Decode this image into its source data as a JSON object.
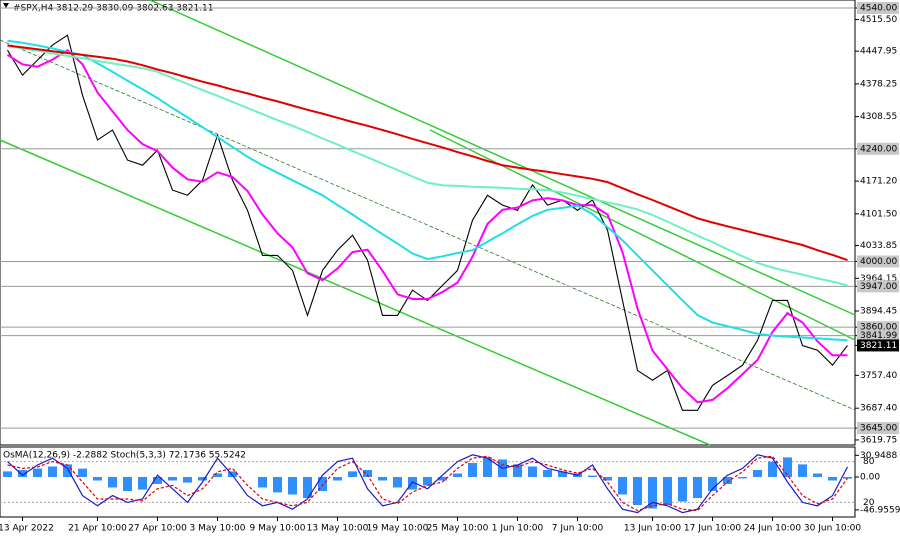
{
  "chart_data": [
    {
      "type": "line",
      "title": "#SPX,H4  3812.29 3830.09 3802.63 3821.11",
      "categories": [
        null,
        "13 Apr 2022",
        null,
        null,
        null,
        null,
        "21 Apr 10:00",
        null,
        null,
        null,
        "27 Apr 10:00",
        null,
        null,
        null,
        "3 May 10:00",
        null,
        null,
        null,
        "9 May 10:00",
        null,
        null,
        null,
        "13 May 10:00",
        null,
        null,
        null,
        "19 May 10:00",
        null,
        null,
        null,
        "25 May 10:00",
        null,
        null,
        null,
        "1 Jun 10:00",
        null,
        null,
        null,
        "7 Jun 10:00",
        null,
        null,
        null,
        null,
        "13 Jun 10:00",
        null,
        null,
        null,
        "17 Jun 10:00",
        null,
        null,
        null,
        "24 Jun 10:00",
        null,
        null,
        null,
        "30 Jun 10:00",
        null
      ],
      "series": [
        {
          "color": "#000000",
          "values": [
            4450,
            4397,
            4429,
            4461,
            4482,
            4354,
            4259,
            4280,
            4216,
            4205,
            4237,
            4152,
            4141,
            4173,
            4269,
            4173,
            4109,
            4013,
            4013,
            3981,
            3885,
            3981,
            4024,
            4056,
            4003,
            3885,
            3885,
            3939,
            3917,
            3949,
            3981,
            4088,
            4141,
            4120,
            4109,
            4163,
            4120,
            4131,
            4109,
            4131,
            4067,
            3917,
            3768,
            3747,
            3768,
            3683,
            3683,
            3736,
            3757,
            3779,
            3832,
            3917,
            3917,
            3821,
            3811,
            3779,
            3821.11
          ]
        },
        {
          "color": "#ff00ff",
          "values": [
            4440,
            4420,
            4415,
            4430,
            4450,
            4420,
            4360,
            4320,
            4280,
            4250,
            4235,
            4200,
            4175,
            4170,
            4190,
            4180,
            4150,
            4100,
            4060,
            4030,
            3975,
            3960,
            3985,
            4020,
            4025,
            3980,
            3930,
            3920,
            3920,
            3935,
            3955,
            4010,
            4080,
            4110,
            4115,
            4130,
            4135,
            4130,
            4120,
            4120,
            4100,
            4020,
            3900,
            3810,
            3770,
            3730,
            3700,
            3705,
            3730,
            3760,
            3790,
            3850,
            3890,
            3870,
            3830,
            3800,
            3800
          ]
        },
        {
          "color": "#22dde8",
          "values": [
            4470,
            4466,
            4460,
            4454,
            4446,
            4440,
            4422,
            4404,
            4385,
            4367,
            4348,
            4327,
            4307,
            4286,
            4265,
            4244,
            4223,
            4205,
            4189,
            4173,
            4157,
            4141,
            4120,
            4100,
            4079,
            4058,
            4038,
            4017,
            4005,
            4011,
            4018,
            4024,
            4042,
            4060,
            4079,
            4097,
            4110,
            4114,
            4119,
            4101,
            4073,
            4045,
            4013,
            3981,
            3949,
            3917,
            3886,
            3870,
            3862,
            3854,
            3846,
            3842,
            3840,
            3838,
            3836,
            3834,
            3832
          ]
        },
        {
          "color": "#6ef0c0",
          "values": [
            4459,
            4454,
            4449,
            4443,
            4438,
            4433,
            4427,
            4422,
            4417,
            4412,
            4404,
            4391,
            4378,
            4365,
            4353,
            4340,
            4327,
            4314,
            4301,
            4289,
            4276,
            4262,
            4249,
            4235,
            4222,
            4208,
            4195,
            4181,
            4168,
            4162,
            4161,
            4159,
            4158,
            4157,
            4155,
            4154,
            4152,
            4147,
            4140,
            4133,
            4126,
            4119,
            4111,
            4099,
            4085,
            4070,
            4055,
            4041,
            4026,
            4011,
            3997,
            3987,
            3979,
            3972,
            3964,
            3957,
            3949
          ]
        },
        {
          "color": "#e00000",
          "values": [
            4460,
            4456,
            4452,
            4448,
            4444,
            4440,
            4436,
            4432,
            4426,
            4418,
            4409,
            4401,
            4392,
            4383,
            4375,
            4366,
            4358,
            4349,
            4341,
            4332,
            4323,
            4315,
            4306,
            4297,
            4289,
            4280,
            4271,
            4261,
            4252,
            4243,
            4233,
            4224,
            4214,
            4205,
            4200,
            4195,
            4191,
            4186,
            4181,
            4176,
            4169,
            4156,
            4143,
            4131,
            4118,
            4105,
            4092,
            4083,
            4075,
            4067,
            4059,
            4051,
            4043,
            4035,
            4024,
            4014,
            4003
          ]
        }
      ],
      "ylim": [
        3609,
        4557
      ],
      "yticks": [
        {
          "value": 4540,
          "label": "4540.00"
        },
        {
          "value": 4515.5,
          "label": "4515.50"
        },
        4447.95,
        4378.25,
        4308.55,
        {
          "value": 4240,
          "label": "4240.00"
        },
        {
          "value": 4171.2,
          "label": "4171.20"
        },
        {
          "value": 4101.5,
          "label": "4101.50"
        },
        4033.85,
        {
          "value": 4000,
          "label": "4000.00"
        },
        3964.15,
        {
          "value": 3947,
          "label": "3947.00"
        },
        3894.45,
        {
          "value": 3860,
          "label": "3860.00"
        },
        3841.99,
        3821.11,
        {
          "value": 3757.4,
          "label": "3757.40"
        },
        {
          "value": 3687.4,
          "label": "3687.40"
        },
        {
          "value": 3645,
          "label": "3645.00"
        },
        3619.75
      ],
      "levels": [
        4540,
        4240,
        4000,
        3947,
        3860,
        3841.99,
        3645
      ]
    },
    {
      "type": "combo",
      "title": "OsMA(12,26,9) -2.2882 Stoch(5,3,3) 72.1736 55.5242",
      "series": [
        {
          "type": "bar",
          "color": "#2f8fff",
          "values": [
            8,
            10,
            12,
            15,
            18,
            12,
            -5,
            -15,
            -20,
            -18,
            -10,
            -5,
            -8,
            -5,
            5,
            8,
            0,
            -15,
            -22,
            -25,
            -30,
            -20,
            -5,
            8,
            10,
            -5,
            -15,
            -18,
            -12,
            -5,
            5,
            20,
            28,
            25,
            18,
            15,
            10,
            8,
            5,
            2,
            -5,
            -25,
            -40,
            -45,
            -40,
            -35,
            -30,
            -20,
            -10,
            -2,
            10,
            22,
            28,
            18,
            5,
            -5,
            -2.2882
          ]
        },
        {
          "type": "line",
          "axis": "y2",
          "color": "#1a1acd",
          "values": [
            80,
            60,
            75,
            85,
            70,
            30,
            15,
            30,
            20,
            25,
            60,
            40,
            20,
            50,
            85,
            60,
            30,
            15,
            20,
            10,
            25,
            60,
            80,
            85,
            40,
            15,
            20,
            50,
            40,
            60,
            80,
            90,
            85,
            70,
            75,
            85,
            70,
            65,
            60,
            75,
            40,
            10,
            5,
            20,
            15,
            5,
            10,
            40,
            60,
            70,
            90,
            85,
            50,
            20,
            15,
            30,
            72.1736
          ]
        },
        {
          "type": "line",
          "axis": "y2",
          "color": "#e00000",
          "dash": true,
          "values": [
            75,
            70,
            72,
            80,
            75,
            50,
            25,
            25,
            25,
            22,
            40,
            45,
            30,
            40,
            65,
            70,
            45,
            25,
            20,
            15,
            20,
            45,
            70,
            80,
            60,
            25,
            18,
            35,
            45,
            50,
            70,
            85,
            88,
            75,
            72,
            80,
            75,
            68,
            63,
            70,
            50,
            20,
            8,
            15,
            18,
            10,
            8,
            30,
            50,
            65,
            85,
            88,
            60,
            30,
            18,
            25,
            55.5242
          ]
        }
      ],
      "ylim": [
        -55.7,
        41.4
      ],
      "yticks": [
        30.9488,
        {
          "value": 0,
          "label": "0.00"
        },
        -46.9559
      ],
      "y2lim": [
        0,
        100
      ],
      "y2ticks": [
        80,
        20
      ]
    }
  ]
}
